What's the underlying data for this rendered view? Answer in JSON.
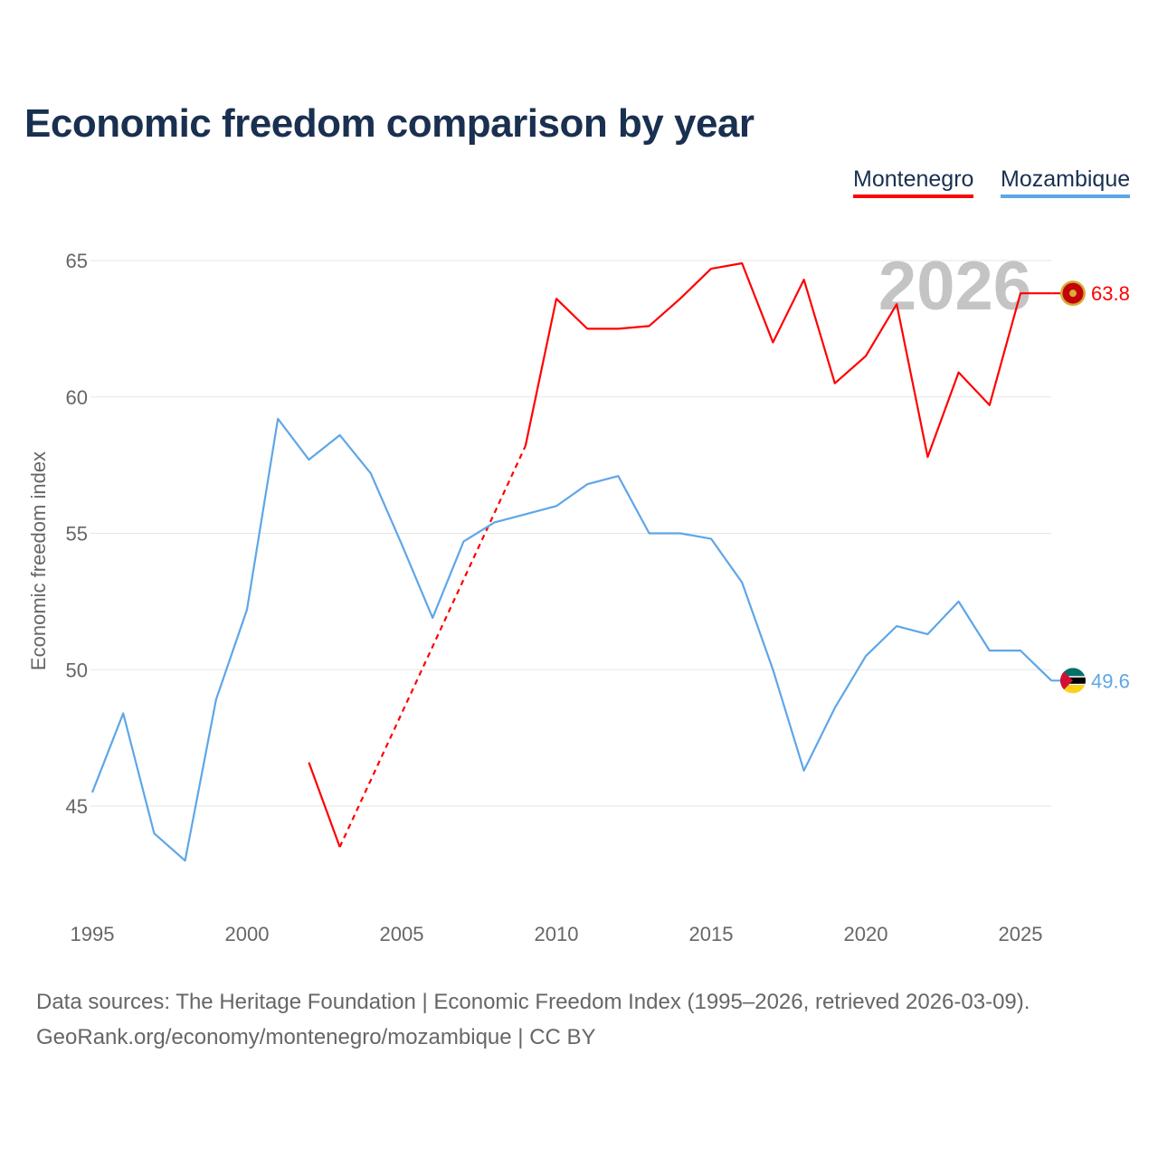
{
  "title": "Economic freedom comparison by year",
  "watermark_year": "2026",
  "footer": {
    "line1": "Data sources: The Heritage Foundation | Economic Freedom Index (1995–2026, retrieved 2026-03-09).",
    "line2": "GeoRank.org/economy/montenegro/mozambique | CC BY"
  },
  "chart_data": {
    "type": "line",
    "title": "Economic freedom comparison by year",
    "xlabel": "",
    "ylabel": "Economic freedom index",
    "xlim": [
      1995,
      2026
    ],
    "ylim": [
      42,
      67
    ],
    "xticks": [
      1995,
      2000,
      2005,
      2010,
      2015,
      2020,
      2025
    ],
    "yticks": [
      45,
      50,
      55,
      60,
      65
    ],
    "grid": true,
    "legend_position": "top-right",
    "x": [
      1995,
      1996,
      1997,
      1998,
      1999,
      2000,
      2001,
      2002,
      2003,
      2004,
      2005,
      2006,
      2007,
      2008,
      2009,
      2010,
      2011,
      2012,
      2013,
      2014,
      2015,
      2016,
      2017,
      2018,
      2019,
      2020,
      2021,
      2022,
      2023,
      2024,
      2025,
      2026
    ],
    "series": [
      {
        "name": "Montenegro",
        "color": "#ff0000",
        "end_label": "63.8",
        "values": [
          null,
          null,
          null,
          null,
          null,
          null,
          null,
          46.6,
          43.5,
          null,
          null,
          null,
          null,
          null,
          58.2,
          63.6,
          62.5,
          62.5,
          62.6,
          63.6,
          64.7,
          64.9,
          62.0,
          64.3,
          60.5,
          61.5,
          63.4,
          57.8,
          60.9,
          59.7,
          63.8,
          63.8
        ]
      },
      {
        "name": "Mozambique",
        "color": "#5ea6e8",
        "end_label": "49.6",
        "values": [
          45.5,
          48.4,
          44.0,
          43.0,
          48.9,
          52.2,
          59.2,
          57.7,
          58.6,
          57.2,
          54.6,
          51.9,
          54.7,
          55.4,
          55.7,
          56.0,
          56.8,
          57.1,
          55.0,
          55.0,
          54.8,
          53.2,
          50.0,
          46.3,
          48.6,
          50.5,
          51.6,
          51.3,
          52.5,
          50.7,
          50.7,
          49.6
        ]
      }
    ]
  }
}
